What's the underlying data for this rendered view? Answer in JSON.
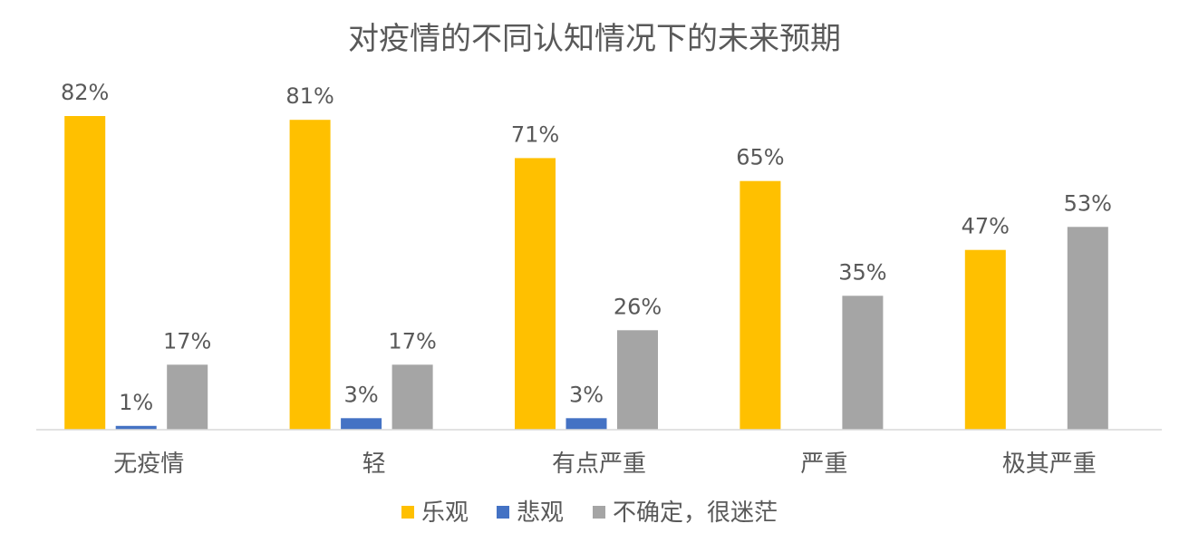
{
  "chart_data": {
    "type": "bar",
    "title": "对疫情的不同认知情况下的未来预期",
    "categories": [
      "无疫情",
      "轻",
      "有点严重",
      "严重",
      "极其严重"
    ],
    "series": [
      {
        "name": "乐观",
        "color": "#FFC000",
        "values": [
          82,
          81,
          71,
          65,
          47
        ]
      },
      {
        "name": "悲观",
        "color": "#4472C4",
        "values": [
          1,
          3,
          3,
          null,
          null
        ]
      },
      {
        "name": "不确定，很迷茫",
        "color": "#A5A5A5",
        "values": [
          17,
          17,
          26,
          35,
          53
        ]
      }
    ],
    "value_suffix": "%",
    "ylim": [
      0,
      90
    ],
    "grid": false,
    "legend_position": "bottom",
    "data_labels": true
  }
}
